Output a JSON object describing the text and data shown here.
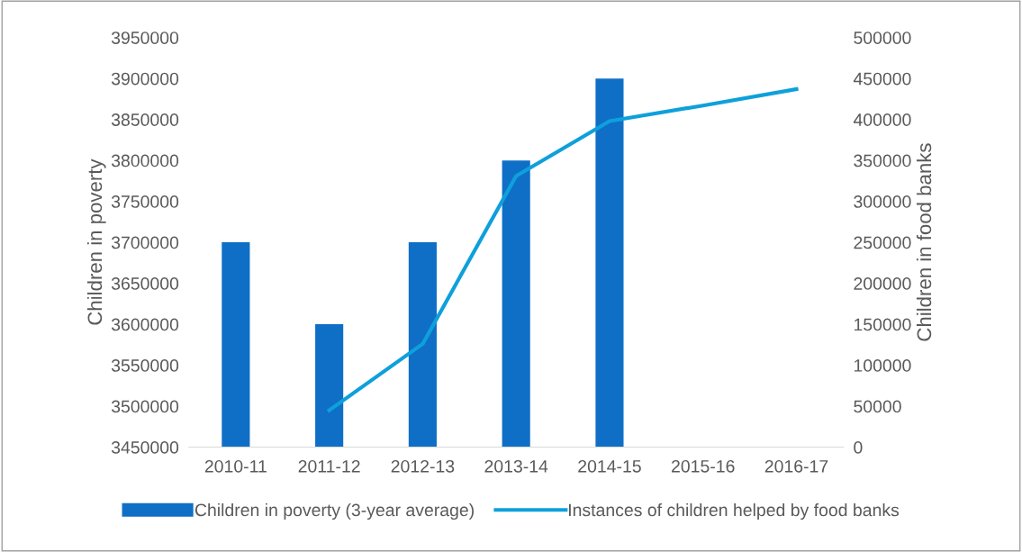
{
  "chart_data": {
    "type": "bar",
    "categories": [
      "2010-11",
      "2011-12",
      "2012-13",
      "2013-14",
      "2014-15",
      "2015-16",
      "2016-17"
    ],
    "ylabel": "Children in poverty",
    "y2label": "Children in food banks",
    "ylim": [
      3450000,
      3950000
    ],
    "yticks": [
      3450000,
      3500000,
      3550000,
      3600000,
      3650000,
      3700000,
      3750000,
      3800000,
      3850000,
      3900000,
      3950000
    ],
    "y2lim": [
      0,
      500000
    ],
    "y2ticks": [
      0,
      50000,
      100000,
      150000,
      200000,
      250000,
      300000,
      350000,
      400000,
      450000,
      500000
    ],
    "series": [
      {
        "name": "Children in poverty (3-year average)",
        "color": "#0f6fc6",
        "values": [
          3700000,
          3600000,
          3700000,
          3800000,
          3900000,
          null,
          null
        ]
      },
      {
        "name": "Instances of children helped by food banks",
        "type": "line",
        "axis": "y2",
        "color": "#0ea0dc",
        "values": [
          null,
          45000,
          126000,
          331000,
          398000,
          417000,
          437000
        ]
      }
    ],
    "legend": "bottom",
    "grid": false
  }
}
